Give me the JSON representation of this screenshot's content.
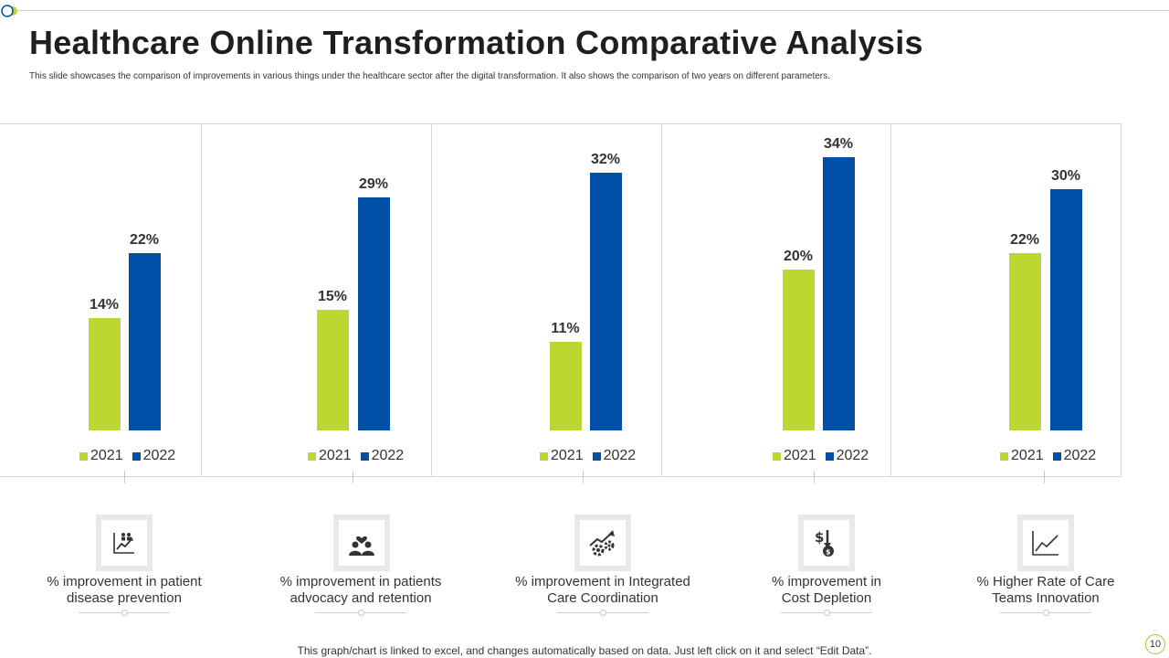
{
  "header": {
    "title": "Healthcare Online Transformation Comparative Analysis",
    "subtitle": "This slide showcases the comparison of improvements in various things under the healthcare sector after the digital transformation. It also shows the comparison of two years on different parameters."
  },
  "colors": {
    "y2021": "#bdd630",
    "y2022": "#0050a8"
  },
  "chart_data": [
    {
      "type": "bar",
      "categories": [
        "2021",
        "2022"
      ],
      "values": [
        14,
        22
      ],
      "labels": [
        "14%",
        "22%"
      ],
      "ylim": [
        0,
        35
      ]
    },
    {
      "type": "bar",
      "categories": [
        "2021",
        "2022"
      ],
      "values": [
        15,
        29
      ],
      "labels": [
        "15%",
        "29%"
      ],
      "ylim": [
        0,
        35
      ]
    },
    {
      "type": "bar",
      "categories": [
        "2021",
        "2022"
      ],
      "values": [
        11,
        32
      ],
      "labels": [
        "11%",
        "32%"
      ],
      "ylim": [
        0,
        35
      ]
    },
    {
      "type": "bar",
      "categories": [
        "2021",
        "2022"
      ],
      "values": [
        20,
        34
      ],
      "labels": [
        "20%",
        "34%"
      ],
      "ylim": [
        0,
        35
      ]
    },
    {
      "type": "bar",
      "categories": [
        "2021",
        "2022"
      ],
      "values": [
        22,
        30
      ],
      "labels": [
        "22%",
        "30%"
      ],
      "ylim": [
        0,
        35
      ]
    }
  ],
  "legend": [
    "2021",
    "2022"
  ],
  "parameters": [
    {
      "icon": "chart-people-icon",
      "line1": "% improvement in patient",
      "line2": "disease prevention"
    },
    {
      "icon": "heart-people-icon",
      "line1": "% improvement in patients",
      "line2": "advocacy and retention"
    },
    {
      "icon": "gears-growth-icon",
      "line1": "% improvement in Integrated",
      "line2": "Care Coordination"
    },
    {
      "icon": "dollar-down-icon",
      "line1": "% improvement in",
      "line2": "Cost  Depletion"
    },
    {
      "icon": "line-chart-icon",
      "line1": "% Higher Rate of Care",
      "line2": "Teams Innovation"
    }
  ],
  "footer": "This graph/chart is linked to excel,  and changes automatically based on data. Just left click on it and select “Edit Data”.",
  "page_number": "10"
}
